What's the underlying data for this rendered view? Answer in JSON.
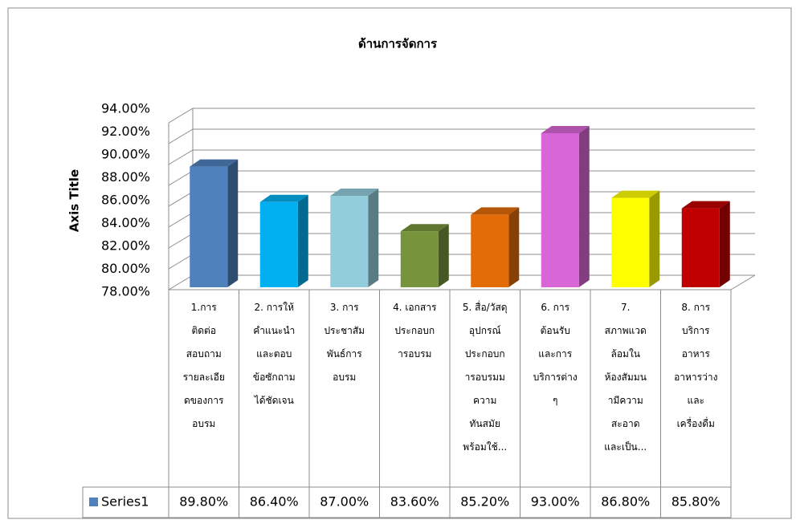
{
  "chart_data": {
    "type": "bar3d",
    "title": "ด้านการจัดการ",
    "y_axis_label": "Axis Title",
    "categories": [
      "1.การ\nติดต่อ\nสอบถาม\nรายละเอีย\nดของการ\nอบรม",
      "2. การให้\nคำแนะนำ\nและตอบ\nข้อซักถาม\nได้ชัดเจน",
      "3. การ\nประชาสัม\nพันธ์การ\nอบรม",
      "4. เอกสาร\nประกอบก\nารอบรม",
      "5. สื่อ/วัสดุ\nอุปกรณ์\nประกอบก\nารอบรมม\nความ\nทันสมัย\nพร้อมใช้...",
      "6. การ\nต้อนรับ\nและการ\nบริการต่าง\nๆ",
      "7.\nสภาพแวด\nล้อมใน\nห้องสัมมน\nามีความ\nสะอาด\nและเป็น...",
      "8. การ\nบริการ\nอาหาร\nอาหารว่าง\nและ\nเครื่องดื่ม"
    ],
    "series": [
      {
        "name": "Series1",
        "color": "#4f81bd",
        "colors": [
          "#4f81bd",
          "#00b0f0",
          "#92cddc",
          "#77933c",
          "#e36c09",
          "#d966d6",
          "#ffff00",
          "#c00000"
        ],
        "values": [
          89.8,
          86.4,
          87.0,
          83.6,
          85.2,
          93.0,
          86.8,
          85.8
        ],
        "value_labels": [
          "89.80%",
          "86.40%",
          "87.00%",
          "83.60%",
          "85.20%",
          "93.00%",
          "86.80%",
          "85.80%"
        ]
      }
    ],
    "ylim": [
      78,
      94
    ],
    "yticks": [
      {
        "value": 78,
        "label": "78.00%"
      },
      {
        "value": 80,
        "label": "80.00%"
      },
      {
        "value": 82,
        "label": "82.00%"
      },
      {
        "value": 84,
        "label": "84.00%"
      },
      {
        "value": 86,
        "label": "86.00%"
      },
      {
        "value": 88,
        "label": "88.00%"
      },
      {
        "value": 90,
        "label": "90.00%"
      },
      {
        "value": 92,
        "label": "92.00%"
      },
      {
        "value": 94,
        "label": "94.00%"
      }
    ],
    "grid": true
  }
}
